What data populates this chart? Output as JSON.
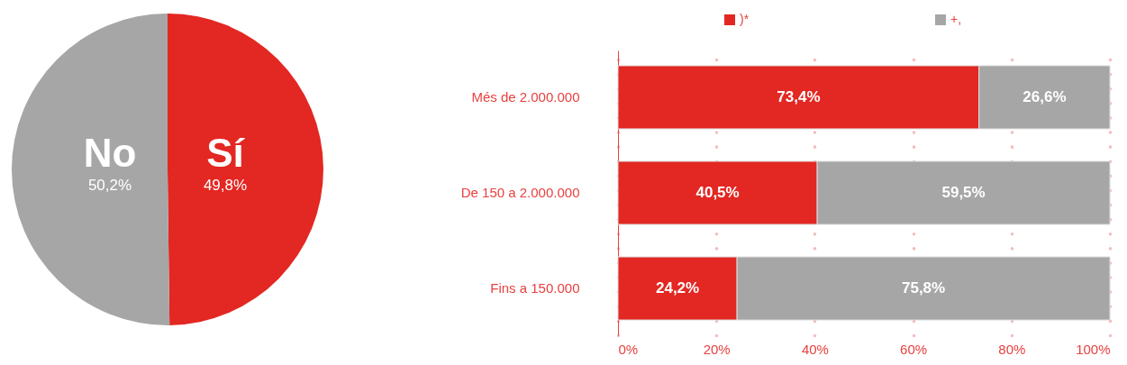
{
  "chart_data": [
    {
      "type": "pie",
      "categories": [
        "Sí",
        "No"
      ],
      "values": [
        49.8,
        50.2
      ],
      "colors": [
        "#e32722",
        "#a6a6a6"
      ],
      "value_labels": [
        "49,8%",
        "50,2%"
      ]
    },
    {
      "type": "bar",
      "orientation": "horizontal",
      "stacked": true,
      "categories": [
        "Més de 2.000.000",
        "De 150 a 2.000.000",
        "Fins a 150.000"
      ],
      "series": [
        {
          "name": ")*",
          "color": "#e32722",
          "values": [
            73.4,
            40.5,
            24.2
          ],
          "value_labels": [
            "73,4%",
            "40,5%",
            "24,2%"
          ]
        },
        {
          "name": "+,",
          "color": "#a6a6a6",
          "values": [
            26.6,
            59.5,
            75.8
          ],
          "value_labels": [
            "26,6%",
            "59,5%",
            "75,8%"
          ]
        }
      ],
      "xlim": [
        0,
        100
      ],
      "xticks": [
        {
          "value": 0,
          "label": "0%"
        },
        {
          "value": 20,
          "label": "20%"
        },
        {
          "value": 40,
          "label": "40%"
        },
        {
          "value": 60,
          "label": "60%"
        },
        {
          "value": 80,
          "label": "80%"
        },
        {
          "value": 100,
          "label": "100%"
        }
      ],
      "grid": "x",
      "legend": "top"
    }
  ]
}
